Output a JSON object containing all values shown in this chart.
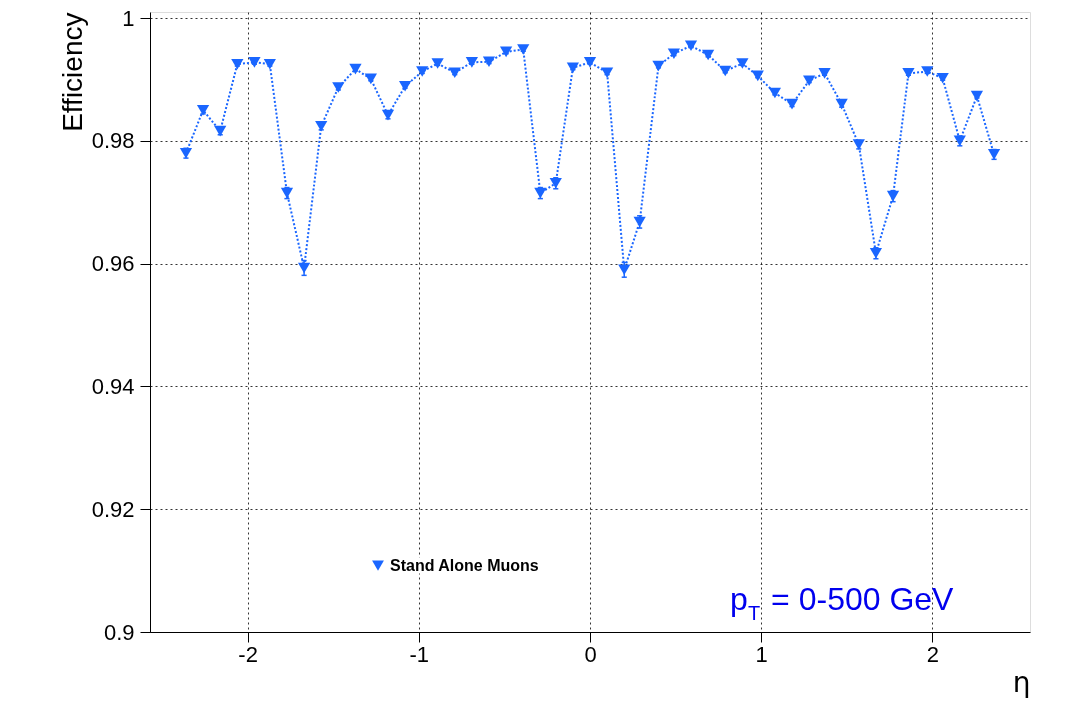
{
  "chart_data": {
    "type": "line",
    "xlabel": "η",
    "ylabel": "Efficiency",
    "xlim": [
      -2.57,
      2.57
    ],
    "xticks": [
      -2,
      -1,
      0,
      1,
      2
    ],
    "ylim": [
      0.9,
      1.001
    ],
    "yticks": [
      0.9,
      0.92,
      0.94,
      0.96,
      0.98,
      1
    ],
    "grid": true,
    "legend": "bottom left",
    "marker": "triangle",
    "line_style": "dotted",
    "annotations": [
      "p$_{T}$ = 0-500 GeV"
    ],
    "series": [
      {
        "name": "Stand Alone Muons",
        "color": "#1a66ff",
        "x": [
          -2.36,
          -2.26,
          -2.16,
          -2.06,
          -1.96,
          -1.87,
          -1.77,
          -1.67,
          -1.57,
          -1.47,
          -1.37,
          -1.28,
          -1.18,
          -1.08,
          -0.98,
          -0.89,
          -0.79,
          -0.69,
          -0.59,
          -0.49,
          -0.39,
          -0.29,
          -0.2,
          -0.1,
          0.0,
          0.1,
          0.2,
          0.29,
          0.4,
          0.49,
          0.59,
          0.69,
          0.79,
          0.89,
          0.98,
          1.08,
          1.18,
          1.28,
          1.37,
          1.47,
          1.57,
          1.67,
          1.77,
          1.86,
          1.97,
          2.06,
          2.16,
          2.26,
          2.36
        ],
        "values": [
          0.978,
          0.985,
          0.9816,
          0.9925,
          0.9928,
          0.9925,
          0.9715,
          0.9593,
          0.9824,
          0.9887,
          0.9917,
          0.9901,
          0.9842,
          0.9889,
          0.9913,
          0.9926,
          0.9911,
          0.9928,
          0.9929,
          0.9945,
          0.9949,
          0.9715,
          0.9731,
          0.9919,
          0.9928,
          0.9911,
          0.959,
          0.9668,
          0.9922,
          0.9942,
          0.9955,
          0.994,
          0.9914,
          0.9926,
          0.9906,
          0.9878,
          0.986,
          0.9898,
          0.991,
          0.986,
          0.9794,
          0.9617,
          0.971,
          0.991,
          0.9913,
          0.9902,
          0.98,
          0.9873,
          0.9778
        ],
        "errors": [
          0.0008,
          0.0006,
          0.0006,
          0.0003,
          0.0003,
          0.0003,
          0.0009,
          0.0012,
          0.0006,
          0.0004,
          0.0003,
          0.0003,
          0.0006,
          0.0003,
          0.0003,
          0.0003,
          0.0003,
          0.0003,
          0.0003,
          0.0003,
          0.0003,
          0.0009,
          0.0009,
          0.0003,
          0.0003,
          0.0003,
          0.0012,
          0.001,
          0.0003,
          0.0003,
          0.0003,
          0.0003,
          0.0003,
          0.0003,
          0.0003,
          0.0003,
          0.0004,
          0.0003,
          0.0003,
          0.0005,
          0.0007,
          0.0009,
          0.0009,
          0.0003,
          0.0003,
          0.0003,
          0.0008,
          0.0003,
          0.0008
        ]
      }
    ]
  }
}
